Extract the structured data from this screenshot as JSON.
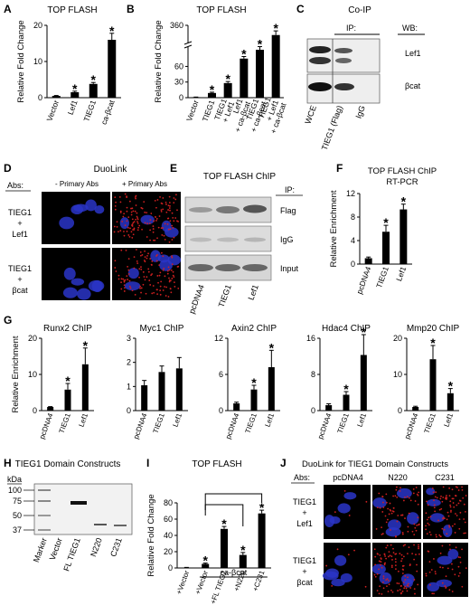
{
  "panels": {
    "A": {
      "letter": "A",
      "title": "TOP FLASH"
    },
    "B": {
      "letter": "B",
      "title": "TOP FLASH"
    },
    "C": {
      "letter": "C",
      "title": "Co-IP",
      "ip_label": "IP:",
      "wb_label": "WB:",
      "bands": [
        "Lef1",
        "βcat"
      ],
      "lanes": [
        "WCE",
        "TIEG1 (Flag)",
        "IgG"
      ]
    },
    "D": {
      "letter": "D",
      "title": "DuoLink",
      "abs_label": "Abs:",
      "cols": [
        "- Primary Abs",
        "+ Primary Abs"
      ],
      "rows": [
        [
          "TIEG1",
          "+",
          "Lef1"
        ],
        [
          "TIEG1",
          "+",
          "βcat"
        ]
      ]
    },
    "E": {
      "letter": "E",
      "title": "TOP FLASH ChIP",
      "ip_label": "IP:",
      "bands": [
        "Flag",
        "IgG",
        "Input"
      ],
      "lanes": [
        "pcDNA4",
        "TIEG1",
        "Lef1"
      ]
    },
    "F": {
      "letter": "F",
      "title": "TOP FLASH ChIP",
      "subtitle": "RT-PCR"
    },
    "G": {
      "letter": "G"
    },
    "H": {
      "letter": "H",
      "title": "TIEG1 Domain Constructs",
      "kda": "kDa",
      "markers": [
        "100",
        "75",
        "50",
        "37"
      ],
      "lanes": [
        "Marker",
        "Vector",
        "FL TIEG1",
        "N220",
        "C231"
      ]
    },
    "I": {
      "letter": "I",
      "title": "TOP FLASH",
      "bracket_label": "ca-βcat"
    },
    "J": {
      "letter": "J",
      "title": "DuoLink for TIEG1 Domain Constructs",
      "abs_label": "Abs:",
      "cols": [
        "pcDNA4",
        "N220",
        "C231"
      ],
      "rows": [
        [
          "TIEG1",
          "+",
          "Lef1"
        ],
        [
          "TIEG1",
          "+",
          "βcat"
        ]
      ]
    }
  },
  "star": "*",
  "colors": {
    "bar": "#000000",
    "nuclei": "#2a35c8",
    "pla_dots": "#d02020",
    "background": "#000000"
  },
  "chart_data": [
    {
      "id": "A",
      "type": "bar",
      "title": "TOP FLASH",
      "ylabel": "Relative Fold Change",
      "categories": [
        "Vector",
        "Lef1",
        "TIEG1",
        "ca-βcat"
      ],
      "values": [
        0.5,
        1.5,
        3.8,
        16
      ],
      "errors": [
        0.1,
        0.3,
        0.4,
        1.8
      ],
      "significant": [
        false,
        true,
        true,
        true
      ],
      "ylim": [
        0,
        20
      ],
      "yticks": [
        0,
        10,
        20
      ]
    },
    {
      "id": "B",
      "type": "bar",
      "title": "TOP FLASH",
      "ylabel": "Relative Fold Change",
      "categories": [
        "Vector",
        "TIEG1",
        "TIEG1 + Lef1",
        "Lef1 + ca-βcat",
        "TIEG1 + ca-βcat",
        "TIEG1 + Lef1 + ca-βcat"
      ],
      "values": [
        1,
        9,
        28,
        75,
        92,
        325
      ],
      "errors": [
        0.2,
        1.5,
        3,
        4,
        6,
        15
      ],
      "significant": [
        false,
        true,
        true,
        true,
        true,
        true
      ],
      "ylim": [
        0,
        360
      ],
      "yticks": [
        0,
        30,
        60,
        360
      ],
      "axis_break": true
    },
    {
      "id": "F",
      "type": "bar",
      "title": "TOP FLASH ChIP",
      "subtitle": "RT-PCR",
      "ylabel": "Relative Enrichment",
      "categories": [
        "pcDNA4",
        "TIEG1",
        "Lef1"
      ],
      "values": [
        1,
        5.5,
        9.3
      ],
      "errors": [
        0.2,
        1.1,
        0.9
      ],
      "significant": [
        false,
        true,
        true
      ],
      "ylim": [
        0,
        12
      ],
      "yticks": [
        0,
        4,
        8,
        12
      ]
    },
    {
      "id": "G1",
      "type": "bar",
      "title": "Runx2 ChIP",
      "ylabel": "Relative Enrichment",
      "categories": [
        "pcDNA4",
        "TIEG1",
        "Lef1"
      ],
      "values": [
        1,
        5.8,
        12.8
      ],
      "errors": [
        0.1,
        1.7,
        4.5
      ],
      "significant": [
        false,
        true,
        true
      ],
      "ylim": [
        0,
        20
      ],
      "yticks": [
        0,
        10,
        20
      ]
    },
    {
      "id": "G2",
      "type": "bar",
      "title": "Myc1 ChIP",
      "ylabel": "",
      "categories": [
        "pcDNA4",
        "TIEG1",
        "Lef1"
      ],
      "values": [
        1.05,
        1.6,
        1.75
      ],
      "errors": [
        0.2,
        0.25,
        0.45
      ],
      "significant": [
        false,
        false,
        false
      ],
      "ylim": [
        0,
        3
      ],
      "yticks": [
        0,
        1,
        2,
        3
      ]
    },
    {
      "id": "G3",
      "type": "bar",
      "title": "Axin2 ChIP",
      "ylabel": "",
      "categories": [
        "pcDNA4",
        "TIEG1",
        "Lef1"
      ],
      "values": [
        1.2,
        3.5,
        7.2
      ],
      "errors": [
        0.2,
        0.7,
        2.8
      ],
      "significant": [
        false,
        true,
        true
      ],
      "ylim": [
        0,
        12
      ],
      "yticks": [
        0,
        6,
        12
      ]
    },
    {
      "id": "G4",
      "type": "bar",
      "title": "Hdac4 ChIP",
      "ylabel": "",
      "categories": [
        "pcDNA4",
        "TIEG1",
        "Lef1"
      ],
      "values": [
        1.2,
        3.5,
        12.3
      ],
      "errors": [
        0.3,
        0.7,
        4.5
      ],
      "significant": [
        false,
        true,
        true
      ],
      "ylim": [
        0,
        16
      ],
      "yticks": [
        0,
        8,
        16
      ]
    },
    {
      "id": "G5",
      "type": "bar",
      "title": "Mmp20 ChIP",
      "ylabel": "",
      "categories": [
        "pcDNA4",
        "TIEG1",
        "Lef1"
      ],
      "values": [
        1,
        14.2,
        4.8
      ],
      "errors": [
        0.2,
        3.8,
        1.3
      ],
      "significant": [
        false,
        true,
        true
      ],
      "ylim": [
        0,
        20
      ],
      "yticks": [
        0,
        10,
        20
      ]
    },
    {
      "id": "I",
      "type": "bar",
      "title": "TOP FLASH",
      "ylabel": "Relative Fold Change",
      "categories": [
        "+Vector",
        "+Vector",
        "+FL TIEG1",
        "+N220",
        "+C231"
      ],
      "group_label": "ca-βcat",
      "values": [
        0.5,
        5,
        48,
        16,
        67
      ],
      "errors": [
        0.2,
        1,
        3,
        3,
        4
      ],
      "significant": [
        false,
        true,
        true,
        true,
        true
      ],
      "ylim": [
        0,
        80
      ],
      "yticks": [
        0,
        20,
        40,
        60,
        80
      ]
    }
  ]
}
